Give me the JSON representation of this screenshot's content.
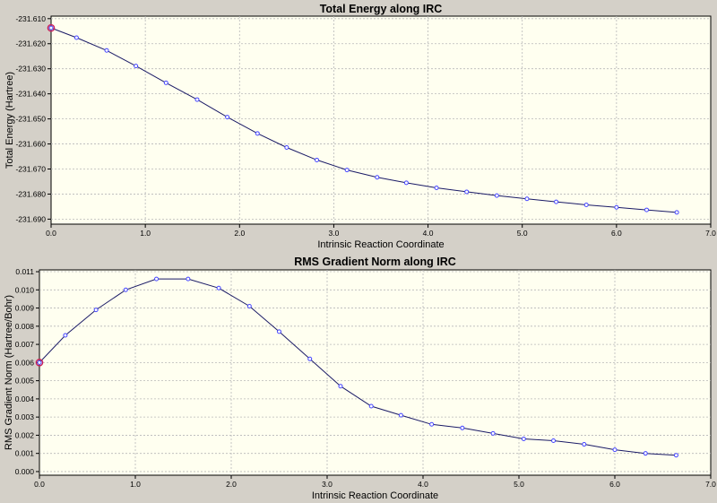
{
  "colors": {
    "background": "#d4d0c8",
    "plot_background": "#fffff0",
    "line": "#1a1a66",
    "marker": "#4444ff",
    "highlight_marker": "#c81e5a",
    "grid": "#b8b8b8"
  },
  "chart_data": [
    {
      "type": "line",
      "title": "Total Energy along IRC",
      "xlabel": "Intrinsic Reaction Coordinate",
      "ylabel": "Total Energy (Hartree)",
      "xlim": [
        0.0,
        7.0
      ],
      "ylim": [
        -231.692,
        -231.609
      ],
      "xticks": [
        0.0,
        1.0,
        2.0,
        3.0,
        4.0,
        5.0,
        6.0,
        7.0
      ],
      "xtick_labels": [
        "0.0",
        "1.0",
        "2.0",
        "3.0",
        "4.0",
        "5.0",
        "6.0",
        "7.0"
      ],
      "yticks": [
        -231.61,
        -231.62,
        -231.63,
        -231.64,
        -231.65,
        -231.66,
        -231.67,
        -231.68,
        -231.69
      ],
      "ytick_labels": [
        "-231.610",
        "-231.620",
        "-231.630",
        "-231.640",
        "-231.650",
        "-231.660",
        "-231.670",
        "-231.680",
        "-231.690"
      ],
      "grid": true,
      "highlight_index": 0,
      "series": [
        {
          "x": [
            0.0,
            0.27,
            0.59,
            0.9,
            1.22,
            1.55,
            1.87,
            2.19,
            2.5,
            2.82,
            3.14,
            3.46,
            3.77,
            4.09,
            4.41,
            4.73,
            5.05,
            5.36,
            5.68,
            6.0,
            6.32,
            6.64
          ],
          "y": [
            -231.6137,
            -231.6176,
            -231.6227,
            -231.6289,
            -231.6356,
            -231.6423,
            -231.6493,
            -231.6558,
            -231.6614,
            -231.6664,
            -231.6704,
            -231.6733,
            -231.6755,
            -231.6775,
            -231.6791,
            -231.6806,
            -231.6819,
            -231.6831,
            -231.6843,
            -231.6853,
            -231.6863,
            -231.6873
          ]
        }
      ]
    },
    {
      "type": "line",
      "title": "RMS Gradient Norm along IRC",
      "xlabel": "Intrinsic Reaction Coordinate",
      "ylabel": "RMS Gradient Norm (Hartree/Bohr)",
      "xlim": [
        0.0,
        7.0
      ],
      "ylim": [
        -0.0002,
        0.0111
      ],
      "xticks": [
        0.0,
        1.0,
        2.0,
        3.0,
        4.0,
        5.0,
        6.0,
        7.0
      ],
      "xtick_labels": [
        "0.0",
        "1.0",
        "2.0",
        "3.0",
        "4.0",
        "5.0",
        "6.0",
        "7.0"
      ],
      "yticks": [
        0.0,
        0.001,
        0.002,
        0.003,
        0.004,
        0.005,
        0.006,
        0.007,
        0.008,
        0.009,
        0.01,
        0.011
      ],
      "ytick_labels": [
        "0.000",
        "0.001",
        "0.002",
        "0.003",
        "0.004",
        "0.005",
        "0.006",
        "0.007",
        "0.008",
        "0.009",
        "0.010",
        "0.011"
      ],
      "grid": true,
      "highlight_index": 0,
      "series": [
        {
          "x": [
            0.0,
            0.27,
            0.59,
            0.9,
            1.22,
            1.55,
            1.87,
            2.19,
            2.5,
            2.82,
            3.14,
            3.46,
            3.77,
            4.09,
            4.41,
            4.73,
            5.05,
            5.36,
            5.68,
            6.0,
            6.32,
            6.64
          ],
          "y": [
            0.006,
            0.0075,
            0.0089,
            0.01,
            0.0106,
            0.0106,
            0.0101,
            0.0091,
            0.0077,
            0.0062,
            0.0047,
            0.0036,
            0.0031,
            0.0026,
            0.0024,
            0.0021,
            0.0018,
            0.0017,
            0.0015,
            0.0012,
            0.001,
            0.0009
          ]
        }
      ]
    }
  ]
}
